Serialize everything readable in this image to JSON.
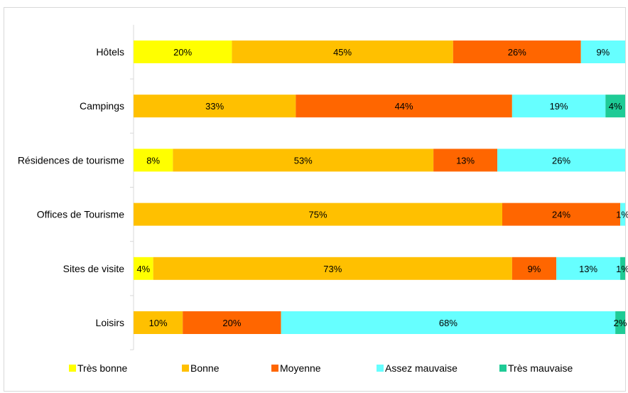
{
  "chart_data": {
    "type": "bar",
    "orientation": "horizontal",
    "stacked": true,
    "categories": [
      "Hôtels",
      "Campings",
      "Résidences de tourisme",
      "Offices de Tourisme",
      "Sites de visite",
      "Loisirs"
    ],
    "series": [
      {
        "name": "Très bonne",
        "color": "#ffff00",
        "values": [
          20,
          0,
          8,
          0,
          4,
          0
        ],
        "labels": [
          "20%",
          "",
          "8%",
          "",
          "4%",
          ""
        ]
      },
      {
        "name": "Bonne",
        "color": "#ffc000",
        "values": [
          45,
          33,
          53,
          75,
          73,
          10
        ],
        "labels": [
          "45%",
          "33%",
          "53%",
          "75%",
          "73%",
          "10%"
        ]
      },
      {
        "name": "Moyenne",
        "color": "#ff6600",
        "values": [
          26,
          44,
          13,
          24,
          9,
          20
        ],
        "labels": [
          "26%",
          "44%",
          "13%",
          "24%",
          "9%",
          "20%"
        ]
      },
      {
        "name": "Assez mauvaise",
        "color": "#66ffff",
        "values": [
          9,
          19,
          26,
          1,
          13,
          68
        ],
        "labels": [
          "9%",
          "19%",
          "26%",
          "1%",
          "13%",
          "68%"
        ]
      },
      {
        "name": "Très mauvaise",
        "color": "#1fcb96",
        "values": [
          0,
          4,
          0,
          0,
          1,
          2
        ],
        "labels": [
          "",
          "4%",
          "",
          "",
          "1%",
          "2%"
        ]
      }
    ],
    "xlim": [
      0,
      100
    ],
    "grid": false,
    "legend_position": "bottom"
  }
}
